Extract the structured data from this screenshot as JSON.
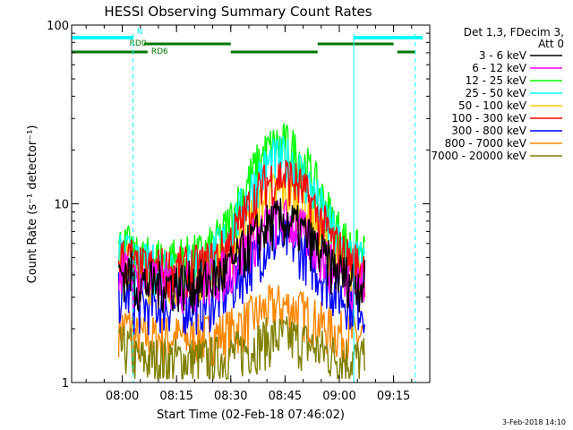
{
  "chart_data": {
    "type": "line",
    "title": "HESSI Observing Summary Count Rates",
    "xlabel": "Start Time (02-Feb-18 07:46:02)",
    "ylabel": "Count Rate (s⁻¹ detector⁻¹)",
    "y_scale": "log",
    "ylim": [
      1,
      100
    ],
    "xlim": [
      "07:46",
      "09:25"
    ],
    "x_ticks": [
      "08:00",
      "08:15",
      "08:30",
      "08:45",
      "09:00",
      "09:15"
    ],
    "y_ticks": [
      "1",
      "10",
      "100"
    ],
    "legend_title": [
      "Det 1,3, FDecim 3,",
      "Att 0"
    ],
    "legend_position": "right",
    "data_start": "07:59",
    "data_end": "09:07",
    "series": [
      {
        "name": "3 - 6 keV",
        "color": "#000000",
        "baseline": 4,
        "peak": 9
      },
      {
        "name": "6 - 12 keV",
        "color": "#ff00ff",
        "baseline": 4,
        "peak": 9
      },
      {
        "name": "12 - 25 keV",
        "color": "#00ff00",
        "baseline": 5.5,
        "peak": 24
      },
      {
        "name": "25 - 50 keV",
        "color": "#00ffff",
        "baseline": 5,
        "peak": 20
      },
      {
        "name": "50 - 100 keV",
        "color": "#ffcc00",
        "baseline": 4.5,
        "peak": 13
      },
      {
        "name": "100 - 300 keV",
        "color": "#ff0000",
        "baseline": 4.8,
        "peak": 16
      },
      {
        "name": "300 - 800 keV",
        "color": "#0000ff",
        "baseline": 3,
        "peak": 7
      },
      {
        "name": "800 - 7000 keV",
        "color": "#ff8800",
        "baseline": 2,
        "peak": 3
      },
      {
        "name": "7000 - 20000 keV",
        "color": "#808000",
        "baseline": 1.5,
        "peak": 2
      }
    ],
    "flags": [
      {
        "label": "N",
        "color": "#00ffff",
        "segments": [
          [
            "07:46",
            "08:03"
          ],
          [
            "09:04",
            "09:23"
          ]
        ]
      },
      {
        "label": "RD0",
        "color": "#007700",
        "segments": [
          [
            "08:06",
            "08:30"
          ],
          [
            "08:54",
            "09:15"
          ]
        ]
      },
      {
        "label": "RD6",
        "color": "#007700",
        "segments": [
          [
            "07:46",
            "08:07"
          ],
          [
            "08:30",
            "08:54"
          ],
          [
            "09:16",
            "09:21"
          ]
        ]
      }
    ],
    "vlines": [
      {
        "t": "08:03",
        "color": "#00ffff",
        "style": "dashed"
      },
      {
        "t": "09:04",
        "color": "#00ffff",
        "style": "solid"
      },
      {
        "t": "09:21",
        "color": "#00ffff",
        "style": "dashed"
      },
      {
        "t": "07:46",
        "color": "#00ffff",
        "style": "solid"
      }
    ]
  },
  "footer": {
    "timestamp": "3-Feb-2018 14:10"
  }
}
